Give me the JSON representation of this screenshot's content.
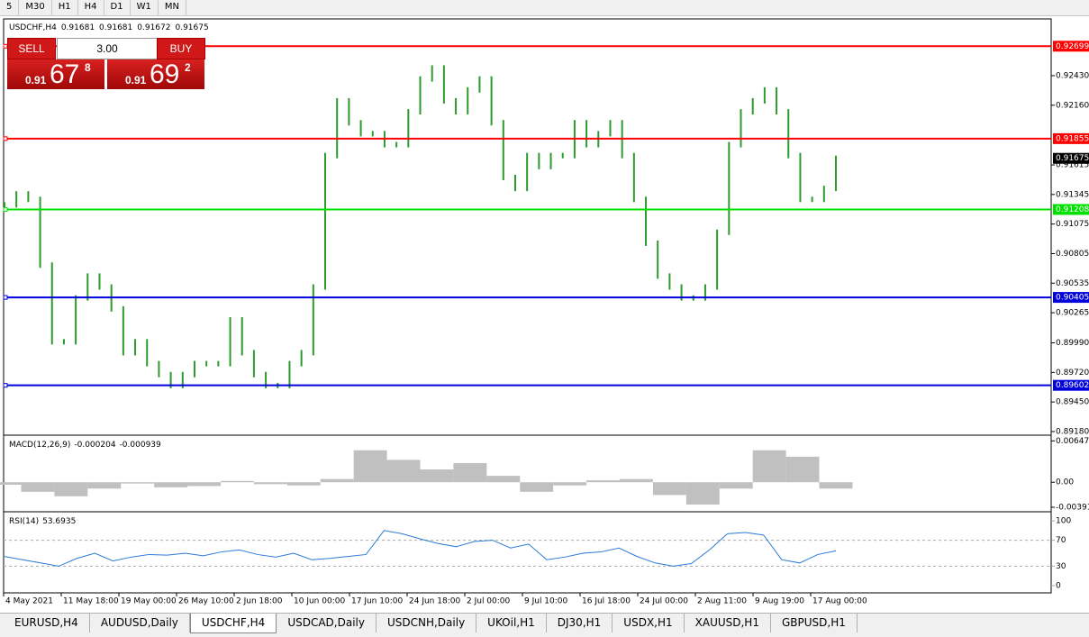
{
  "toolbar": {
    "timeframes": [
      "5",
      "M30",
      "H1",
      "H4",
      "D1",
      "W1",
      "MN"
    ]
  },
  "trade_panel": {
    "sell": "SELL",
    "buy": "BUY",
    "volume": "3.00",
    "sell_price": {
      "big": "0.91",
      "main": "67",
      "pip": "8"
    },
    "buy_price": {
      "big": "0.91",
      "main": "69",
      "pip": "2"
    }
  },
  "price_chart": {
    "symbol": "USDCHF,H4",
    "ohlc": [
      0.91681,
      0.91681,
      0.91672,
      0.91675
    ],
    "ylim": [
      0.89155,
      0.9294
    ],
    "yticks": [
      {
        "value": 0.9243,
        "label": "0.92430"
      },
      {
        "value": 0.9216,
        "label": "0.92160"
      },
      0.91615,
      0.91345,
      0.91075,
      0.90805,
      0.90535,
      0.90265,
      {
        "value": 0.8999,
        "label": "0.89990"
      },
      {
        "value": 0.8972,
        "label": "0.89720"
      },
      {
        "value": 0.8945,
        "label": "0.89450"
      },
      {
        "value": 0.8918,
        "label": "0.89180"
      }
    ],
    "levels": [
      {
        "value": 0.92699,
        "color": "#ff0000"
      },
      {
        "value": 0.91855,
        "color": "#ff0000"
      },
      {
        "value": 0.91208,
        "color": "#00e000"
      },
      {
        "value": 0.90405,
        "color": "#0000dd"
      },
      {
        "value": 0.89602,
        "color": "#0000dd"
      }
    ],
    "current": 0.91675,
    "closes": [
      0.9125,
      0.9135,
      0.913,
      0.907,
      0.9,
      0.9,
      0.904,
      0.906,
      0.905,
      0.903,
      0.899,
      0.9,
      0.898,
      0.897,
      0.896,
      0.897,
      0.898,
      0.898,
      0.898,
      0.902,
      0.899,
      0.897,
      0.896,
      0.896,
      0.898,
      0.899,
      0.905,
      0.917,
      0.922,
      0.92,
      0.919,
      0.919,
      0.918,
      0.918,
      0.921,
      0.924,
      0.925,
      0.922,
      0.921,
      0.923,
      0.924,
      0.92,
      0.915,
      0.914,
      0.917,
      0.916,
      0.917,
      0.917,
      0.92,
      0.918,
      0.919,
      0.92,
      0.917,
      0.913,
      0.909,
      0.906,
      0.905,
      0.904,
      0.904,
      0.905,
      0.91,
      0.918,
      0.921,
      0.922,
      0.923,
      0.921,
      0.917,
      0.913,
      0.913,
      0.914,
      0.91675
    ],
    "color": "#2e9a2e",
    "x_labels": [
      "4 May 2021",
      "11 May 18:00",
      "19 May 00:00",
      "26 May 10:00",
      "2 Jun 18:00",
      "10 Jun 00:00",
      "17 Jun 10:00",
      "24 Jun 18:00",
      "2 Jul 00:00",
      "9 Jul 10:00",
      "16 Jul 18:00",
      "24 Jul 00:00",
      "2 Aug 11:00",
      "9 Aug 19:00",
      "17 Aug 00:00"
    ]
  },
  "macd_panel": {
    "name": "MACD(12,26,9)",
    "values": [
      -0.000204,
      -0.000939
    ],
    "ylim": [
      -0.0042,
      0.0068
    ],
    "yticks": [
      0.00647,
      {
        "value": 0,
        "label": "0.00"
      },
      -0.003916
    ],
    "histogram": [
      -0.0004,
      -0.0015,
      -0.0022,
      -0.001,
      -0.0002,
      -0.0008,
      -0.0006,
      0.0002,
      -0.0003,
      -0.0005,
      0.0005,
      0.005,
      0.0035,
      0.002,
      0.003,
      0.001,
      -0.0015,
      -0.0005,
      0.0003,
      0.0005,
      -0.002,
      -0.0035,
      -0.001,
      0.005,
      0.004,
      -0.001
    ],
    "color": "#c0c0c0"
  },
  "rsi_panel": {
    "name": "RSI(14)",
    "value": 53.6935,
    "ylim": [
      0,
      100
    ],
    "yticks": [
      100,
      70,
      30,
      0
    ],
    "values": [
      45,
      40,
      35,
      30,
      42,
      50,
      38,
      44,
      48,
      47,
      50,
      46,
      52,
      55,
      48,
      44,
      50,
      40,
      42,
      45,
      48,
      85,
      80,
      72,
      65,
      60,
      68,
      70,
      58,
      64,
      40,
      44,
      50,
      52,
      58,
      45,
      35,
      30,
      34,
      55,
      80,
      82,
      78,
      40,
      35,
      48,
      53.6935
    ],
    "color": "#2b7bd6"
  },
  "tabs": {
    "items": [
      "EURUSD,H4",
      "AUDUSD,Daily",
      "USDCHF,H4",
      "USDCAD,Daily",
      "USDCNH,Daily",
      "UKOil,H1",
      "DJ30,H1",
      "USDX,H1",
      "XAUUSD,H1",
      "GBPUSD,H1"
    ],
    "active": "USDCHF,H4"
  }
}
